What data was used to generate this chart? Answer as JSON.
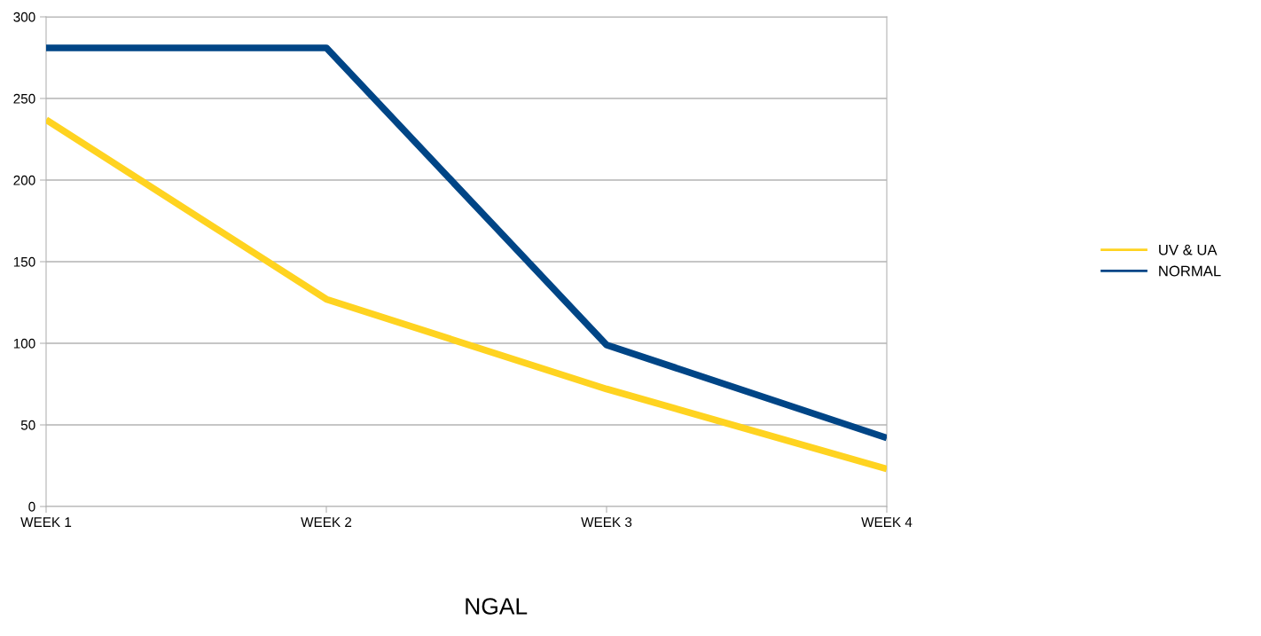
{
  "chart_data": {
    "type": "line",
    "xlabel": "NGAL",
    "categories": [
      "WEEK 1",
      "WEEK 2",
      "WEEK 3",
      "WEEK 4"
    ],
    "series": [
      {
        "name": "UV & UA",
        "color": "#ffd320",
        "values": [
          237,
          127,
          72,
          23
        ]
      },
      {
        "name": "NORMAL",
        "color": "#004586",
        "values": [
          281,
          281,
          99,
          42
        ]
      }
    ],
    "ylim": [
      0,
      300
    ],
    "yticks": [
      0,
      50,
      100,
      150,
      200,
      250,
      300
    ],
    "grid": "y",
    "legend": "right",
    "marker": "none",
    "line_style": "solid"
  }
}
